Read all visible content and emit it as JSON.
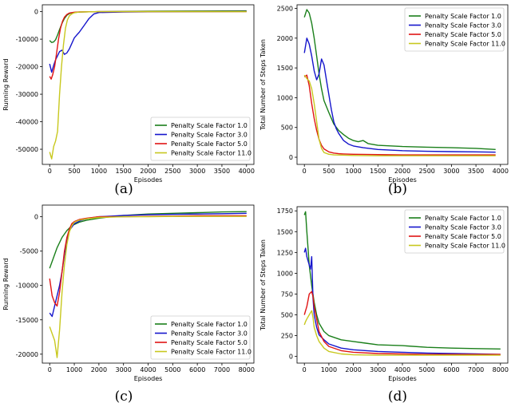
{
  "chart_data": [
    {
      "type": "line",
      "caption": "(a)",
      "xlabel": "Episodes",
      "ylabel": "Running Reward",
      "xlim": [
        -150,
        4150
      ],
      "ylim": [
        -55500,
        2500
      ],
      "xticks": [
        0,
        500,
        1000,
        1500,
        2000,
        2500,
        3000,
        3500,
        4000
      ],
      "yticks": [
        -50000,
        -40000,
        -30000,
        -20000,
        -10000,
        0
      ],
      "legend_position": "lower-right",
      "series": [
        {
          "name": "Penalty Scale Factor 1.0",
          "color": "#1a7f1a",
          "x": [
            0,
            40,
            80,
            120,
            160,
            200,
            250,
            300,
            350,
            400,
            500,
            600,
            700,
            800,
            1000,
            1500,
            2000,
            3000,
            4000
          ],
          "y": [
            -10500,
            -11200,
            -11000,
            -10200,
            -8500,
            -6500,
            -4200,
            -2500,
            -1300,
            -700,
            -300,
            -150,
            -80,
            -50,
            0,
            100,
            150,
            250,
            300
          ]
        },
        {
          "name": "Penalty Scale Factor 3.0",
          "color": "#1515cc",
          "x": [
            0,
            40,
            80,
            120,
            160,
            200,
            250,
            300,
            350,
            400,
            450,
            500,
            550,
            600,
            700,
            800,
            900,
            1000,
            1500,
            2000,
            3000,
            4000
          ],
          "y": [
            -19000,
            -22000,
            -19500,
            -17500,
            -16000,
            -14500,
            -14000,
            -15500,
            -15000,
            -13500,
            -11500,
            -9500,
            -8500,
            -7500,
            -5000,
            -2500,
            -800,
            -300,
            -100,
            -50,
            0,
            100
          ]
        },
        {
          "name": "Penalty Scale Factor 5.0",
          "color": "#e01414",
          "x": [
            0,
            30,
            60,
            100,
            140,
            180,
            220,
            260,
            300,
            350,
            400,
            500,
            600,
            800,
            1000,
            2000,
            3000,
            4000
          ],
          "y": [
            -23500,
            -24500,
            -23000,
            -20000,
            -15000,
            -10000,
            -6000,
            -3500,
            -2000,
            -1000,
            -500,
            -200,
            -100,
            -50,
            0,
            0,
            0,
            0
          ]
        },
        {
          "name": "Penalty Scale Factor 11.0",
          "color": "#c8c81e",
          "x": [
            0,
            40,
            80,
            120,
            160,
            200,
            240,
            280,
            320,
            360,
            400,
            450,
            500,
            600,
            800,
            1000,
            2000,
            3000,
            4000
          ],
          "y": [
            -51000,
            -53500,
            -49000,
            -47000,
            -43500,
            -30000,
            -20000,
            -12000,
            -6000,
            -3000,
            -1500,
            -800,
            -400,
            -150,
            -50,
            0,
            0,
            0,
            0
          ]
        }
      ]
    },
    {
      "type": "line",
      "caption": "(b)",
      "xlabel": "Episodes",
      "ylabel": "Total Number of Steps Taken",
      "xlim": [
        -150,
        4150
      ],
      "ylim": [
        -120,
        2560
      ],
      "xticks": [
        0,
        500,
        1000,
        1500,
        2000,
        2500,
        3000,
        3500,
        4000
      ],
      "yticks": [
        0,
        500,
        1000,
        1500,
        2000,
        2500
      ],
      "legend_position": "top-right",
      "series": [
        {
          "name": "Penalty Scale Factor 1.0",
          "color": "#1a7f1a",
          "x": [
            0,
            50,
            100,
            150,
            200,
            250,
            300,
            350,
            400,
            500,
            600,
            700,
            800,
            900,
            1000,
            1100,
            1200,
            1300,
            1500,
            2000,
            2500,
            3000,
            3500,
            3900
          ],
          "y": [
            2350,
            2480,
            2420,
            2250,
            2000,
            1700,
            1400,
            1150,
            950,
            750,
            560,
            450,
            380,
            320,
            280,
            260,
            280,
            230,
            200,
            180,
            170,
            160,
            150,
            130
          ]
        },
        {
          "name": "Penalty Scale Factor 3.0",
          "color": "#1515cc",
          "x": [
            0,
            50,
            100,
            150,
            200,
            250,
            300,
            350,
            400,
            450,
            500,
            550,
            600,
            650,
            700,
            800,
            900,
            1000,
            1200,
            1500,
            2000,
            2500,
            3000,
            3500,
            3900
          ],
          "y": [
            1750,
            2000,
            1900,
            1700,
            1450,
            1300,
            1400,
            1650,
            1550,
            1300,
            1050,
            800,
            600,
            480,
            400,
            280,
            220,
            190,
            160,
            130,
            110,
            100,
            95,
            90,
            85
          ]
        },
        {
          "name": "Penalty Scale Factor 5.0",
          "color": "#e01414",
          "x": [
            0,
            50,
            100,
            150,
            200,
            250,
            300,
            350,
            400,
            500,
            600,
            700,
            800,
            1000,
            1500,
            2000,
            3000,
            3900
          ],
          "y": [
            1350,
            1380,
            1200,
            900,
            650,
            450,
            300,
            200,
            140,
            90,
            70,
            60,
            55,
            50,
            45,
            40,
            40,
            40
          ]
        },
        {
          "name": "Penalty Scale Factor 11.0",
          "color": "#c8c81e",
          "x": [
            0,
            50,
            100,
            150,
            200,
            250,
            300,
            350,
            400,
            500,
            600,
            800,
            1000,
            1500,
            2000,
            3000,
            3900
          ],
          "y": [
            1380,
            1320,
            1280,
            1150,
            900,
            600,
            300,
            150,
            80,
            50,
            40,
            35,
            30,
            25,
            25,
            25,
            25
          ]
        }
      ]
    },
    {
      "type": "line",
      "caption": "(c)",
      "xlabel": "Episodes",
      "ylabel": "Running Reward",
      "xlim": [
        -300,
        8300
      ],
      "ylim": [
        -21300,
        1700
      ],
      "xticks": [
        0,
        1000,
        2000,
        3000,
        4000,
        5000,
        6000,
        7000,
        8000
      ],
      "yticks": [
        -20000,
        -15000,
        -10000,
        -5000,
        0
      ],
      "legend_position": "lower-right",
      "series": [
        {
          "name": "Penalty Scale Factor 1.0",
          "color": "#1a7f1a",
          "x": [
            0,
            100,
            200,
            300,
            500,
            700,
            900,
            1200,
            1500,
            2000,
            2500,
            3000,
            4000,
            5000,
            6000,
            7000,
            8000
          ],
          "y": [
            -7500,
            -6500,
            -5500,
            -4500,
            -3000,
            -2000,
            -1300,
            -800,
            -500,
            -200,
            0,
            200,
            400,
            500,
            600,
            700,
            750
          ]
        },
        {
          "name": "Penalty Scale Factor 3.0",
          "color": "#1515cc",
          "x": [
            0,
            100,
            200,
            300,
            400,
            500,
            600,
            700,
            800,
            1000,
            1300,
            1600,
            2000,
            2500,
            3000,
            4000,
            5000,
            6000,
            7000,
            8000
          ],
          "y": [
            -14000,
            -14500,
            -13000,
            -11500,
            -10000,
            -8000,
            -5500,
            -3500,
            -2000,
            -1000,
            -500,
            -200,
            0,
            100,
            200,
            300,
            350,
            400,
            450,
            500
          ]
        },
        {
          "name": "Penalty Scale Factor 5.0",
          "color": "#e01414",
          "x": [
            0,
            100,
            200,
            300,
            400,
            500,
            600,
            700,
            800,
            900,
            1000,
            1200,
            1500,
            2000,
            3000,
            4000,
            5000,
            6000,
            7000,
            8000
          ],
          "y": [
            -9000,
            -11500,
            -12500,
            -13000,
            -11000,
            -8000,
            -5000,
            -3000,
            -1800,
            -1000,
            -700,
            -400,
            -200,
            0,
            0,
            50,
            100,
            150,
            150,
            150
          ]
        },
        {
          "name": "Penalty Scale Factor 11.0",
          "color": "#c8c81e",
          "x": [
            0,
            100,
            200,
            300,
            400,
            500,
            600,
            700,
            800,
            900,
            1000,
            1200,
            1500,
            2000,
            3000,
            4000,
            5000,
            6000,
            7000,
            8000
          ],
          "y": [
            -16000,
            -17000,
            -18000,
            -20500,
            -16500,
            -11000,
            -7000,
            -4000,
            -2200,
            -1300,
            -800,
            -500,
            -300,
            -100,
            0,
            0,
            50,
            50,
            50,
            50
          ]
        }
      ]
    },
    {
      "type": "line",
      "caption": "(d)",
      "xlabel": "Episodes",
      "ylabel": "Total Number of Steps Taken",
      "xlim": [
        -300,
        8300
      ],
      "ylim": [
        -80,
        1800
      ],
      "xticks": [
        0,
        1000,
        2000,
        3000,
        4000,
        5000,
        6000,
        7000,
        8000
      ],
      "yticks": [
        0,
        250,
        500,
        750,
        1000,
        1250,
        1500,
        1750
      ],
      "legend_position": "top-right",
      "series": [
        {
          "name": "Penalty Scale Factor 1.0",
          "color": "#1a7f1a",
          "x": [
            0,
            50,
            100,
            150,
            200,
            300,
            400,
            500,
            600,
            800,
            1000,
            1500,
            2000,
            2500,
            3000,
            4000,
            5000,
            6000,
            7000,
            8000
          ],
          "y": [
            1700,
            1740,
            1500,
            1300,
            1100,
            850,
            650,
            500,
            400,
            300,
            250,
            200,
            180,
            160,
            140,
            130,
            110,
            100,
            95,
            90
          ]
        },
        {
          "name": "Penalty Scale Factor 3.0",
          "color": "#1515cc",
          "x": [
            0,
            50,
            100,
            150,
            200,
            250,
            300,
            350,
            400,
            500,
            600,
            800,
            1000,
            1500,
            2000,
            3000,
            4000,
            5000,
            6000,
            7000,
            8000
          ],
          "y": [
            1250,
            1300,
            1200,
            1150,
            1100,
            1050,
            1200,
            700,
            500,
            350,
            260,
            200,
            150,
            100,
            80,
            60,
            50,
            40,
            35,
            30,
            25
          ]
        },
        {
          "name": "Penalty Scale Factor 5.0",
          "color": "#e01414",
          "x": [
            0,
            50,
            100,
            200,
            300,
            350,
            400,
            500,
            600,
            800,
            1000,
            1500,
            2000,
            3000,
            4000,
            5000,
            6000,
            7000,
            8000
          ],
          "y": [
            500,
            550,
            600,
            750,
            780,
            720,
            600,
            450,
            300,
            180,
            120,
            70,
            50,
            35,
            30,
            25,
            25,
            25,
            25
          ]
        },
        {
          "name": "Penalty Scale Factor 11.0",
          "color": "#c8c81e",
          "x": [
            0,
            50,
            100,
            200,
            300,
            350,
            400,
            500,
            600,
            800,
            1000,
            1500,
            2000,
            3000,
            4000,
            5000,
            6000,
            7000,
            8000
          ],
          "y": [
            380,
            420,
            450,
            500,
            550,
            470,
            350,
            250,
            180,
            100,
            60,
            30,
            20,
            15,
            15,
            15,
            15,
            15,
            15
          ]
        }
      ]
    }
  ]
}
